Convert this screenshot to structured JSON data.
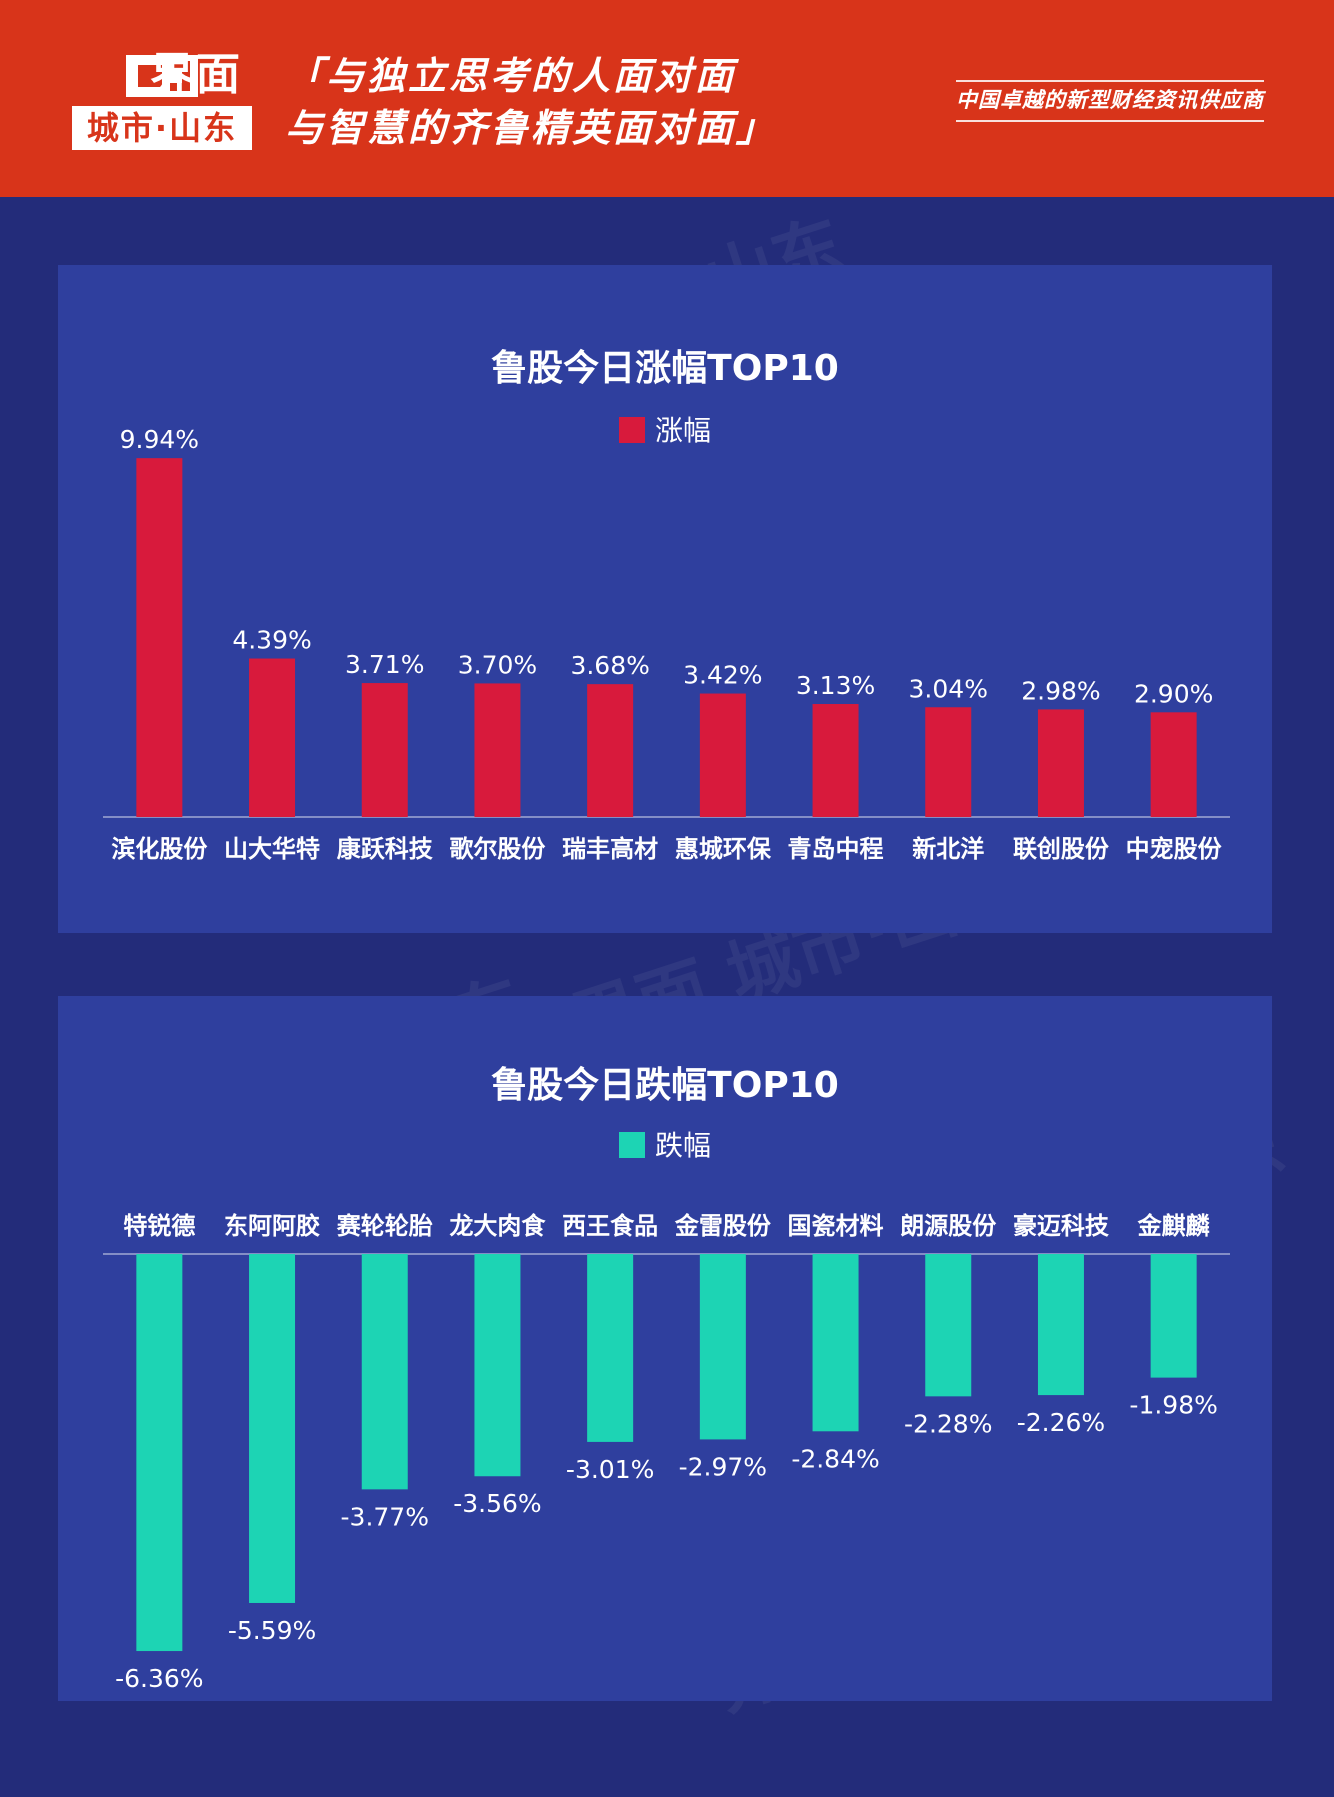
{
  "header": {
    "logo_text": "界面",
    "logo_sub": "城市·山东",
    "slogan_line1": "「与独立思考的人面对面",
    "slogan_line2": "与智慧的齐鲁精英面对面」",
    "tagline": "中国卓越的新型财经资讯供应商",
    "background_color": "#d8341a"
  },
  "watermark_text": "界面 城市·山东",
  "chart_data": [
    {
      "type": "bar",
      "title": "鲁股今日涨幅TOP10",
      "series": [
        {
          "name": "涨幅",
          "color": "#d81a3c",
          "values": [
            9.94,
            4.39,
            3.71,
            3.7,
            3.68,
            3.42,
            3.13,
            3.04,
            2.98,
            2.9
          ]
        }
      ],
      "categories": [
        "滨化股份",
        "山大华特",
        "康跃科技",
        "歌尔股份",
        "瑞丰高材",
        "惠城环保",
        "青岛中程",
        "新北洋",
        "联创股份",
        "中宠股份"
      ],
      "data_labels": [
        "9.94%",
        "4.39%",
        "3.71%",
        "3.70%",
        "3.68%",
        "3.42%",
        "3.13%",
        "3.04%",
        "2.98%",
        "2.90%"
      ],
      "ylim": [
        0,
        10
      ],
      "grid": false,
      "legend_position": "top-center"
    },
    {
      "type": "bar",
      "title": "鲁股今日跌幅TOP10",
      "series": [
        {
          "name": "跌幅",
          "color": "#1dd4b4",
          "values": [
            -6.36,
            -5.59,
            -3.77,
            -3.56,
            -3.01,
            -2.97,
            -2.84,
            -2.28,
            -2.26,
            -1.98
          ]
        }
      ],
      "categories": [
        "特锐德",
        "东阿阿胶",
        "赛轮轮胎",
        "龙大肉食",
        "西王食品",
        "金雷股份",
        "国瓷材料",
        "朗源股份",
        "豪迈科技",
        "金麒麟"
      ],
      "data_labels": [
        "-6.36%",
        "-5.59%",
        "-3.77%",
        "-3.56%",
        "-3.01%",
        "-2.97%",
        "-2.84%",
        "-2.28%",
        "-2.26%",
        "-1.98%"
      ],
      "ylim": [
        -7,
        0
      ],
      "grid": false,
      "legend_position": "top-center"
    }
  ]
}
